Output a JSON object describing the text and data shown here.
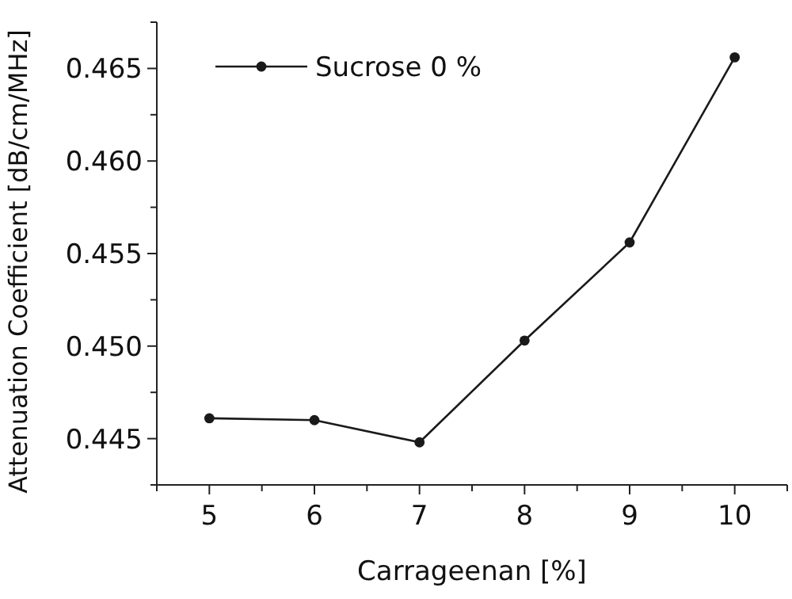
{
  "chart_data": {
    "type": "line",
    "xlabel": "Carrageenan [%]",
    "ylabel": "Attenuation Coefficient [dB/cm/MHz]",
    "x": [
      5,
      6,
      7,
      8,
      9,
      10
    ],
    "series": [
      {
        "name": "Sucrose 0 %",
        "color": "#1a1a1a",
        "values": [
          0.4461,
          0.446,
          0.4448,
          0.4503,
          0.4556,
          0.4656
        ]
      }
    ],
    "xlim": [
      4.5,
      10.5
    ],
    "xticks": [
      {
        "value": 4.5,
        "label": null
      },
      5,
      {
        "value": 5.5,
        "label": null
      },
      6,
      {
        "value": 6.5,
        "label": null
      },
      7,
      {
        "value": 7.5,
        "label": null
      },
      8,
      {
        "value": 8.5,
        "label": null
      },
      9,
      {
        "value": 9.5,
        "label": null
      },
      10,
      {
        "value": 10.5,
        "label": null
      }
    ],
    "ylim": [
      0.4425,
      0.4675
    ],
    "yticks": [
      {
        "value": 0.4425,
        "label": null
      },
      {
        "value": 0.445,
        "label": "0.445"
      },
      {
        "value": 0.4475,
        "label": null
      },
      {
        "value": 0.45,
        "label": "0.450"
      },
      {
        "value": 0.4525,
        "label": null
      },
      {
        "value": 0.455,
        "label": "0.455"
      },
      {
        "value": 0.4575,
        "label": null
      },
      {
        "value": 0.46,
        "label": "0.460"
      },
      {
        "value": 0.4625,
        "label": null
      },
      {
        "value": 0.465,
        "label": "0.465"
      },
      {
        "value": 0.4675,
        "label": null
      }
    ],
    "marker": "circle",
    "line_style": "solid",
    "legend": "top left",
    "grid": false
  }
}
